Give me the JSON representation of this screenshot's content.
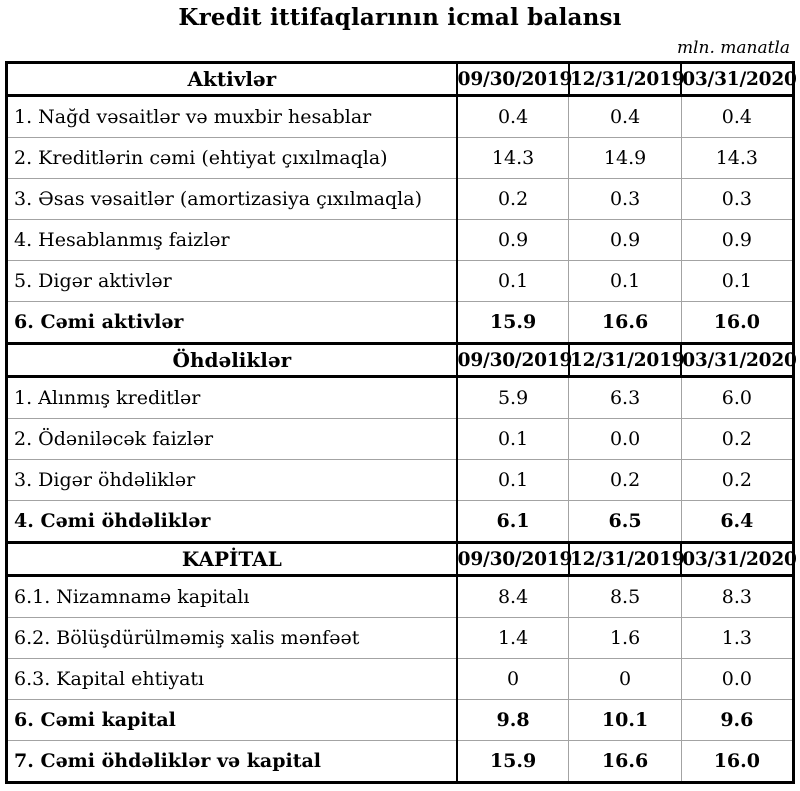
{
  "page": {
    "title": "Kredit ittifaqlarının icmal balansı",
    "unit_note": "mln. manatla"
  },
  "table": {
    "date_columns": [
      "09/30/2019",
      "12/31/2019",
      "03/31/2020"
    ],
    "sections": [
      {
        "header": "Aktivlər",
        "rows": [
          {
            "label": "1. Nağd vəsaitlər və muxbir hesablar",
            "values": [
              "0.4",
              "0.4",
              "0.4"
            ],
            "bold": false
          },
          {
            "label": "2. Kreditlərin cəmi (ehtiyat çıxılmaqla)",
            "values": [
              "14.3",
              "14.9",
              "14.3"
            ],
            "bold": false
          },
          {
            "label": "3. Əsas vəsaitlər (amortizasiya çıxılmaqla)",
            "values": [
              "0.2",
              "0.3",
              "0.3"
            ],
            "bold": false
          },
          {
            "label": "4. Hesablanmış faizlər",
            "values": [
              "0.9",
              "0.9",
              "0.9"
            ],
            "bold": false
          },
          {
            "label": "5. Digər aktivlər",
            "values": [
              "0.1",
              "0.1",
              "0.1"
            ],
            "bold": false
          },
          {
            "label": "6. Cəmi aktivlər",
            "values": [
              "15.9",
              "16.6",
              "16.0"
            ],
            "bold": true
          }
        ]
      },
      {
        "header": "Öhdəliklər",
        "rows": [
          {
            "label": "1. Alınmış kreditlər",
            "values": [
              "5.9",
              "6.3",
              "6.0"
            ],
            "bold": false
          },
          {
            "label": "2. Ödəniləcək faizlər",
            "values": [
              "0.1",
              "0.0",
              "0.2"
            ],
            "bold": false
          },
          {
            "label": "3. Digər öhdəliklər",
            "values": [
              "0.1",
              "0.2",
              "0.2"
            ],
            "bold": false
          },
          {
            "label": "4. Cəmi öhdəliklər",
            "values": [
              "6.1",
              "6.5",
              "6.4"
            ],
            "bold": true
          }
        ]
      },
      {
        "header": "KAPİTAL",
        "rows": [
          {
            "label": "6.1. Nizamnamə kapitalı",
            "values": [
              "8.4",
              "8.5",
              "8.3"
            ],
            "bold": false
          },
          {
            "label": "6.2. Bölüşdürülməmiş xalis mənfəət",
            "values": [
              "1.4",
              "1.6",
              "1.3"
            ],
            "bold": false
          },
          {
            "label": "6.3. Kapital ehtiyatı",
            "values": [
              "0",
              "0",
              "0.0"
            ],
            "bold": false
          },
          {
            "label": "6. Cəmi kapital",
            "values": [
              "9.8",
              "10.1",
              "9.6"
            ],
            "bold": true
          },
          {
            "label": "7. Cəmi öhdəliklər və kapital",
            "values": [
              "15.9",
              "16.6",
              "16.0"
            ],
            "bold": true
          }
        ]
      }
    ]
  },
  "colors": {
    "text": "#000000",
    "thick_border": "#000000",
    "thin_border": "#a3a3a3",
    "background": "#ffffff"
  }
}
